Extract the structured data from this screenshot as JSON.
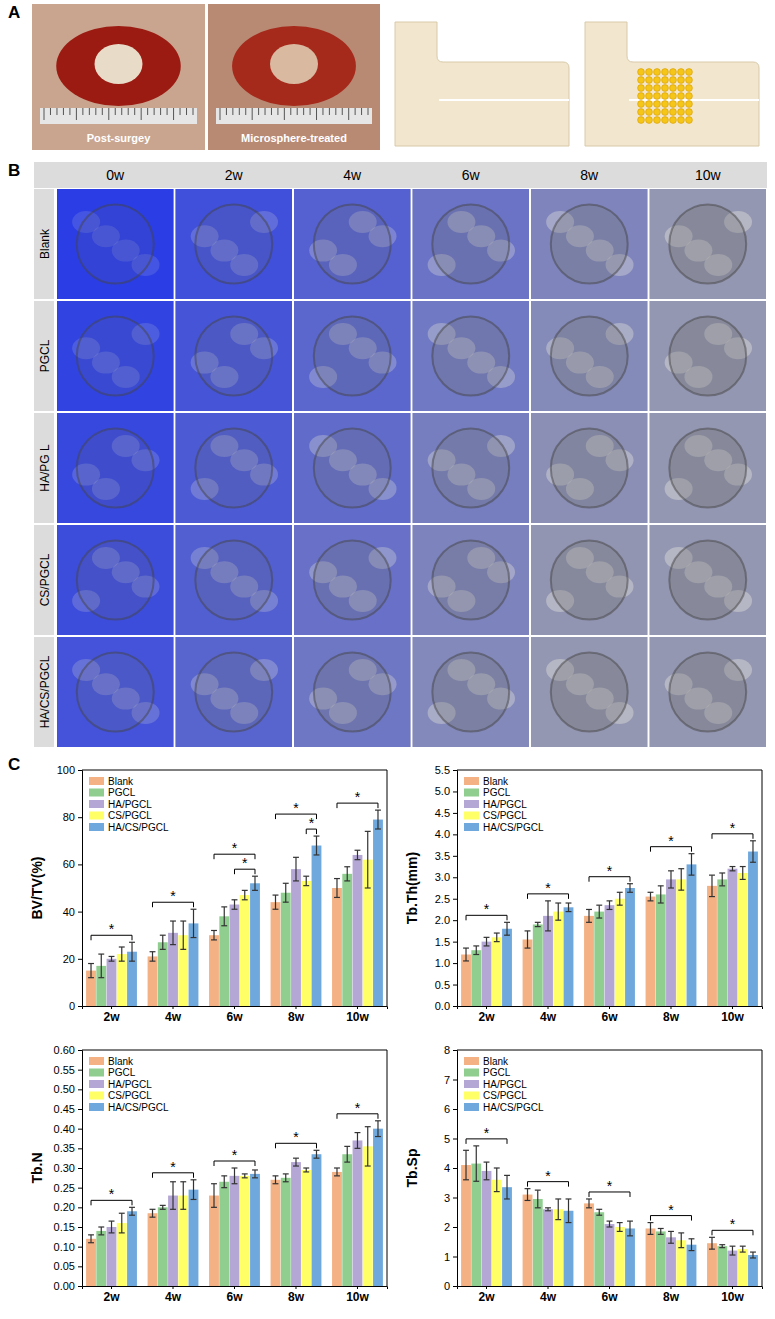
{
  "panel_a": {
    "letter": "A",
    "photo_labels": [
      "Post-surgey",
      "Microsphere-treated"
    ]
  },
  "panel_b": {
    "letter": "B",
    "columns": [
      "0w",
      "2w",
      "4w",
      "6w",
      "8w",
      "10w"
    ],
    "rows": [
      "Blank",
      "PGCL",
      "HA/PG L",
      "CS/PGCL",
      "HA/CS/PGCL"
    ]
  },
  "panel_c": {
    "letter": "C"
  },
  "chart_data": [
    {
      "type": "bar",
      "y_label": "BV/TV(%)",
      "categories": [
        "2w",
        "4w",
        "6w",
        "8w",
        "10w"
      ],
      "series": [
        {
          "name": "Blank",
          "color": "#f4b183",
          "values": [
            15,
            21,
            30,
            44,
            50
          ],
          "errors": [
            3,
            2,
            2,
            3,
            4
          ]
        },
        {
          "name": "PGCL",
          "color": "#8fce8f",
          "values": [
            17,
            27,
            38,
            48,
            56
          ],
          "errors": [
            5,
            3,
            4,
            4,
            3
          ]
        },
        {
          "name": "HA/PGCL",
          "color": "#b4a7d6",
          "values": [
            20,
            31,
            43,
            58,
            64
          ],
          "errors": [
            1,
            5,
            2,
            5,
            2
          ]
        },
        {
          "name": "CS/PGCL",
          "color": "#ffff66",
          "values": [
            22,
            30,
            47,
            53,
            62
          ],
          "errors": [
            3,
            6,
            2,
            2,
            12
          ]
        },
        {
          "name": "HA/CS/PGCL",
          "color": "#6fa8dc",
          "values": [
            23,
            35,
            52,
            68,
            79
          ],
          "errors": [
            4,
            6,
            3,
            4,
            4
          ]
        }
      ],
      "ylim": [
        0,
        100
      ],
      "yticks": [
        0,
        20,
        40,
        60,
        80,
        100
      ],
      "grid": false,
      "legend": "upper left",
      "significance": [
        {
          "category": "2w",
          "from": "Blank",
          "to": "HA/CS/PGCL",
          "label": "*"
        },
        {
          "category": "4w",
          "from": "Blank",
          "to": "HA/CS/PGCL",
          "label": "*"
        },
        {
          "category": "6w",
          "from": "Blank",
          "to": "HA/CS/PGCL",
          "label": "*"
        },
        {
          "category": "6w",
          "from": "HA/PGCL",
          "to": "HA/CS/PGCL",
          "label": "*"
        },
        {
          "category": "8w",
          "from": "Blank",
          "to": "HA/CS/PGCL",
          "label": "*"
        },
        {
          "category": "8w",
          "from": "CS/PGCL",
          "to": "HA/CS/PGCL",
          "label": "*"
        },
        {
          "category": "10w",
          "from": "Blank",
          "to": "HA/CS/PGCL",
          "label": "*"
        }
      ]
    },
    {
      "type": "bar",
      "y_label": "Tb.Th(mm)",
      "categories": [
        "2w",
        "4w",
        "6w",
        "8w",
        "10w"
      ],
      "series": [
        {
          "name": "Blank",
          "color": "#f4b183",
          "values": [
            1.2,
            1.55,
            2.1,
            2.55,
            2.8
          ],
          "errors": [
            0.15,
            0.2,
            0.15,
            0.1,
            0.25
          ]
        },
        {
          "name": "PGCL",
          "color": "#8fce8f",
          "values": [
            1.3,
            1.9,
            2.2,
            2.6,
            2.95
          ],
          "errors": [
            0.1,
            0.05,
            0.15,
            0.2,
            0.15
          ]
        },
        {
          "name": "HA/PGCL",
          "color": "#b4a7d6",
          "values": [
            1.5,
            2.1,
            2.35,
            2.95,
            3.2
          ],
          "errors": [
            0.1,
            0.35,
            0.1,
            0.2,
            0.05
          ]
        },
        {
          "name": "CS/PGCL",
          "color": "#ffff66",
          "values": [
            1.6,
            2.2,
            2.5,
            2.95,
            3.1
          ],
          "errors": [
            0.1,
            0.2,
            0.15,
            0.25,
            0.15
          ]
        },
        {
          "name": "HA/CS/PGCL",
          "color": "#6fa8dc",
          "values": [
            1.8,
            2.3,
            2.75,
            3.3,
            3.6
          ],
          "errors": [
            0.15,
            0.1,
            0.1,
            0.25,
            0.25
          ]
        }
      ],
      "ylim": [
        0,
        5.5
      ],
      "yticks": [
        {
          "value": 0,
          "label": "0.0"
        },
        0.5,
        {
          "value": 1,
          "label": "1.0"
        },
        1.5,
        {
          "value": 2,
          "label": "2.0"
        },
        2.5,
        {
          "value": 3,
          "label": "3.0"
        },
        3.5,
        {
          "value": 4,
          "label": "4.0"
        },
        4.5,
        {
          "value": 5,
          "label": "5.0"
        },
        5.5
      ],
      "grid": false,
      "legend": "upper left",
      "significance": [
        {
          "category": "2w",
          "from": "Blank",
          "to": "HA/CS/PGCL",
          "label": "*"
        },
        {
          "category": "4w",
          "from": "Blank",
          "to": "HA/CS/PGCL",
          "label": "*"
        },
        {
          "category": "6w",
          "from": "Blank",
          "to": "HA/CS/PGCL",
          "label": "*"
        },
        {
          "category": "8w",
          "from": "Blank",
          "to": "HA/CS/PGCL",
          "label": "*"
        },
        {
          "category": "10w",
          "from": "Blank",
          "to": "HA/CS/PGCL",
          "label": "*"
        }
      ]
    },
    {
      "type": "bar",
      "y_label": "Tb.N",
      "categories": [
        "2w",
        "4w",
        "6w",
        "8w",
        "10w"
      ],
      "series": [
        {
          "name": "Blank",
          "color": "#f4b183",
          "values": [
            0.12,
            0.185,
            0.23,
            0.27,
            0.29
          ],
          "errors": [
            0.01,
            0.01,
            0.03,
            0.01,
            0.01
          ]
        },
        {
          "name": "PGCL",
          "color": "#8fce8f",
          "values": [
            0.14,
            0.2,
            0.265,
            0.275,
            0.335
          ],
          "errors": [
            0.01,
            0.005,
            0.015,
            0.01,
            0.02
          ]
        },
        {
          "name": "HA/PGCL",
          "color": "#b4a7d6",
          "values": [
            0.15,
            0.23,
            0.28,
            0.315,
            0.37
          ],
          "errors": [
            0.015,
            0.035,
            0.02,
            0.01,
            0.02
          ]
        },
        {
          "name": "CS/PGCL",
          "color": "#ffff66",
          "values": [
            0.16,
            0.23,
            0.28,
            0.295,
            0.355
          ],
          "errors": [
            0.025,
            0.035,
            0.005,
            0.005,
            0.05
          ]
        },
        {
          "name": "HA/CS/PGCL",
          "color": "#6fa8dc",
          "values": [
            0.19,
            0.245,
            0.285,
            0.335,
            0.4
          ],
          "errors": [
            0.01,
            0.025,
            0.01,
            0.01,
            0.02
          ]
        }
      ],
      "ylim": [
        0,
        0.6
      ],
      "yticks": [
        {
          "value": 0,
          "label": "0.00"
        },
        0.05,
        {
          "value": 0.1,
          "label": "0.10"
        },
        0.15,
        {
          "value": 0.2,
          "label": "0.20"
        },
        0.25,
        {
          "value": 0.3,
          "label": "0.30"
        },
        0.35,
        {
          "value": 0.4,
          "label": "0.40"
        },
        0.45,
        {
          "value": 0.5,
          "label": "0.50"
        },
        0.55,
        {
          "value": 0.6,
          "label": "0.60"
        }
      ],
      "grid": false,
      "legend": "upper left",
      "significance": [
        {
          "category": "2w",
          "from": "Blank",
          "to": "HA/CS/PGCL",
          "label": "*"
        },
        {
          "category": "4w",
          "from": "Blank",
          "to": "HA/CS/PGCL",
          "label": "*"
        },
        {
          "category": "6w",
          "from": "Blank",
          "to": "HA/CS/PGCL",
          "label": "*"
        },
        {
          "category": "8w",
          "from": "Blank",
          "to": "HA/CS/PGCL",
          "label": "*"
        },
        {
          "category": "10w",
          "from": "Blank",
          "to": "HA/CS/PGCL",
          "label": "*"
        }
      ]
    },
    {
      "type": "bar",
      "y_label": "Tb.Sp",
      "categories": [
        "2w",
        "4w",
        "6w",
        "8w",
        "10w"
      ],
      "series": [
        {
          "name": "Blank",
          "color": "#f4b183",
          "values": [
            4.1,
            3.1,
            2.8,
            1.95,
            1.45
          ],
          "errors": [
            0.5,
            0.2,
            0.15,
            0.2,
            0.2
          ]
        },
        {
          "name": "PGCL",
          "color": "#8fce8f",
          "values": [
            4.15,
            2.95,
            2.5,
            1.85,
            1.35
          ],
          "errors": [
            0.6,
            0.3,
            0.1,
            0.1,
            0.05
          ]
        },
        {
          "name": "HA/PGCL",
          "color": "#b4a7d6",
          "values": [
            3.9,
            2.6,
            2.1,
            1.65,
            1.2
          ],
          "errors": [
            0.3,
            0.05,
            0.1,
            0.2,
            0.15
          ]
        },
        {
          "name": "CS/PGCL",
          "color": "#ffff66",
          "values": [
            3.6,
            2.6,
            2.0,
            1.55,
            1.25
          ],
          "errors": [
            0.4,
            0.35,
            0.15,
            0.25,
            0.1
          ]
        },
        {
          "name": "HA/CS/PGCL",
          "color": "#6fa8dc",
          "values": [
            3.35,
            2.55,
            1.95,
            1.4,
            1.05
          ],
          "errors": [
            0.4,
            0.4,
            0.25,
            0.2,
            0.1
          ]
        }
      ],
      "ylim": [
        0,
        8
      ],
      "yticks": [
        0,
        1,
        2,
        3,
        4,
        5,
        6,
        7,
        8
      ],
      "grid": false,
      "legend": "upper left",
      "significance": [
        {
          "category": "2w",
          "from": "Blank",
          "to": "HA/CS/PGCL",
          "label": "*"
        },
        {
          "category": "4w",
          "from": "Blank",
          "to": "HA/CS/PGCL",
          "label": "*"
        },
        {
          "category": "6w",
          "from": "Blank",
          "to": "HA/CS/PGCL",
          "label": "*"
        },
        {
          "category": "8w",
          "from": "Blank",
          "to": "HA/CS/PGCL",
          "label": "*"
        },
        {
          "category": "10w",
          "from": "Blank",
          "to": "HA/CS/PGCL",
          "label": "*"
        }
      ]
    }
  ]
}
